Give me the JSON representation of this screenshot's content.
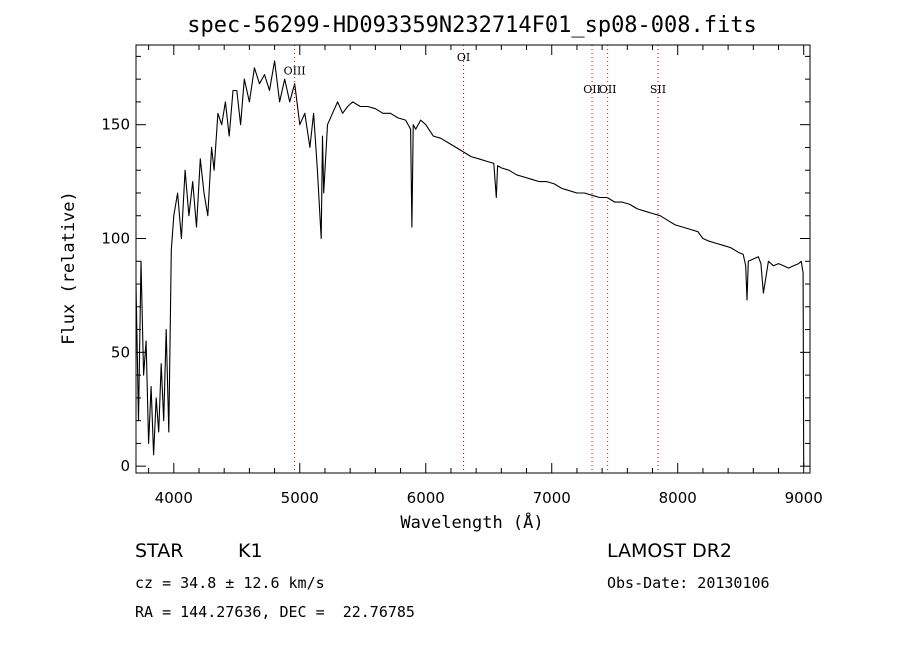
{
  "chart_data": {
    "type": "line",
    "title": "spec-56299-HD093359N232714F01_sp08-008.fits",
    "xlabel": "Wavelength (Å)",
    "ylabel": "Flux (relative)",
    "xlim": [
      3700,
      9050
    ],
    "ylim": [
      -3,
      185
    ],
    "x_ticks": [
      4000,
      5000,
      6000,
      7000,
      8000,
      9000
    ],
    "y_ticks": [
      0,
      50,
      100,
      150
    ],
    "grid": false,
    "series": [
      {
        "color": "#000000",
        "x": [
          3700,
          3720,
          3740,
          3760,
          3780,
          3800,
          3820,
          3840,
          3860,
          3880,
          3900,
          3920,
          3940,
          3960,
          3980,
          4000,
          4030,
          4060,
          4090,
          4120,
          4150,
          4180,
          4210,
          4240,
          4270,
          4300,
          4320,
          4350,
          4380,
          4410,
          4440,
          4470,
          4500,
          4530,
          4560,
          4600,
          4640,
          4680,
          4720,
          4760,
          4800,
          4840,
          4880,
          4920,
          4960,
          5000,
          5040,
          5080,
          5110,
          5140,
          5170,
          5180,
          5190,
          5220,
          5260,
          5300,
          5340,
          5380,
          5420,
          5480,
          5540,
          5600,
          5660,
          5720,
          5780,
          5840,
          5880,
          5890,
          5895,
          5900,
          5920,
          5960,
          6000,
          6060,
          6120,
          6180,
          6240,
          6300,
          6360,
          6420,
          6480,
          6540,
          6560,
          6570,
          6600,
          6660,
          6720,
          6780,
          6840,
          6900,
          6960,
          7020,
          7080,
          7140,
          7200,
          7260,
          7320,
          7380,
          7440,
          7500,
          7560,
          7620,
          7680,
          7740,
          7800,
          7860,
          7920,
          7980,
          8040,
          8100,
          8160,
          8200,
          8240,
          8300,
          8360,
          8420,
          8480,
          8520,
          8540,
          8550,
          8560,
          8600,
          8640,
          8660,
          8680,
          8720,
          8760,
          8800,
          8840,
          8880,
          8920,
          8960,
          8980,
          8995,
          9000
        ],
        "y": [
          80,
          20,
          90,
          40,
          55,
          10,
          35,
          5,
          30,
          15,
          45,
          20,
          60,
          15,
          95,
          110,
          120,
          100,
          130,
          110,
          125,
          105,
          135,
          120,
          110,
          140,
          130,
          155,
          150,
          160,
          145,
          165,
          165,
          150,
          170,
          160,
          175,
          168,
          172,
          165,
          178,
          160,
          170,
          160,
          168,
          150,
          155,
          140,
          155,
          130,
          100,
          145,
          120,
          150,
          155,
          160,
          155,
          158,
          160,
          158,
          158,
          157,
          155,
          155,
          153,
          152,
          148,
          105,
          125,
          150,
          148,
          152,
          150,
          145,
          144,
          142,
          140,
          138,
          136,
          135,
          134,
          133,
          118,
          132,
          131,
          130,
          128,
          127,
          126,
          125,
          125,
          124,
          122,
          121,
          120,
          120,
          119,
          118,
          118,
          116,
          116,
          115,
          113,
          112,
          111,
          110,
          108,
          106,
          105,
          104,
          103,
          100,
          99,
          98,
          97,
          96,
          94,
          93,
          88,
          73,
          90,
          91,
          92,
          89,
          76,
          90,
          88,
          89,
          88,
          87,
          88,
          89,
          90,
          85,
          0
        ]
      }
    ],
    "annotations": [
      {
        "label": "OIII",
        "x": 4959,
        "y_label": 172
      },
      {
        "label": "OI",
        "x": 6300,
        "y_label": 178
      },
      {
        "label": "OII",
        "x": 7320,
        "y_label": 164
      },
      {
        "label": "OII",
        "x": 7444,
        "y_label": 164
      },
      {
        "label": "SII",
        "x": 7843,
        "y_label": 164
      }
    ],
    "line_marker_color": "#cc0000"
  },
  "info": {
    "class": "STAR",
    "subclass": "K1",
    "survey": "LAMOST DR2",
    "cz": "cz = 34.8 ± 12.6 km/s",
    "obs_date": "Obs-Date: 20130106",
    "radec": "RA = 144.27636, DEC =  22.76785"
  }
}
